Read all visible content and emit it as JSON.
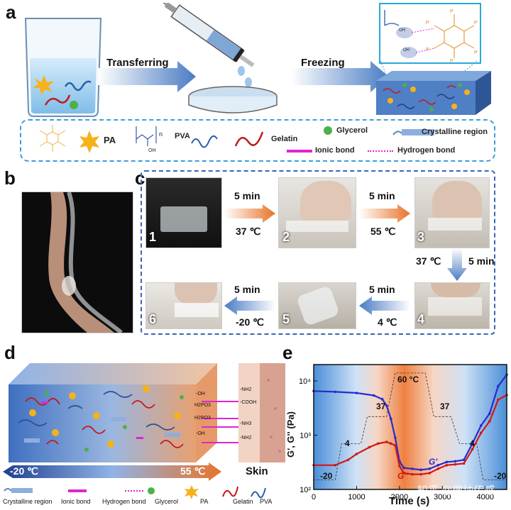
{
  "panels": {
    "a": "a",
    "b": "b",
    "c": "c",
    "d": "d",
    "e": "e"
  },
  "panel_a": {
    "step1": "Transferring",
    "step2": "Freezing",
    "legend": {
      "pa": "PA",
      "pva": "PVA",
      "pva_sub": "n",
      "pva_oh": "OH",
      "gelatin": "Gelatin",
      "glycerol": "Glycerol",
      "crystalline": "Crystalline region",
      "ionic": "Ionic bond",
      "hydrogen": "Hydrogen bond"
    },
    "zoom_labels": [
      "OH",
      "OH"
    ]
  },
  "panel_c": {
    "steps": [
      "1",
      "2",
      "3",
      "4",
      "5",
      "6"
    ],
    "t12": {
      "time": "5 min",
      "temp": "37 ℃"
    },
    "t23": {
      "time": "5 min",
      "temp": "55 ℃"
    },
    "t34": {
      "time": "5 min",
      "temp": "37 ℃"
    },
    "t45": {
      "time": "5 min",
      "temp": "4 ℃"
    },
    "t56": {
      "time": "5 min",
      "temp": "-20 ℃"
    }
  },
  "panel_d": {
    "temp_low": "-20 ℃",
    "temp_high": "55 ℃",
    "skin": "Skin",
    "left_groups": [
      "-OH",
      "H2PO3",
      "H2PO3",
      "-OH"
    ],
    "right_groups": [
      "-NH2",
      "-COOH",
      "-NH3",
      "-NH2"
    ],
    "legend": {
      "crystalline": "Crystalline region",
      "ionic": "Ionic bond",
      "hydrogen": "Hydrogen bond",
      "glycerol": "Glycerol",
      "pa": "PA",
      "gelatin": "Gelatin",
      "pva": "PVA"
    }
  },
  "chart_data": {
    "type": "line",
    "xlabel": "Time (s)",
    "ylabel": "G', G'' (Pa)",
    "xlim": [
      0,
      4500
    ],
    "ylim": [
      100,
      20000
    ],
    "yscale": "log",
    "x_ticks": [
      "0",
      "1000",
      "2000",
      "3000",
      "4000"
    ],
    "y_ticks": [
      "10²",
      "10³",
      "10⁴"
    ],
    "temperature_annotations": [
      "-20",
      "4",
      "37",
      "60 °C",
      "37",
      "4",
      "-20"
    ],
    "series": [
      {
        "name": "G'",
        "color": "#2a2ad0",
        "x": [
          0,
          500,
          1000,
          1400,
          1600,
          1700,
          1800,
          1900,
          2000,
          2100,
          2300,
          2500,
          2700,
          2900,
          3100,
          3300,
          3500,
          3700,
          3900,
          4100,
          4300,
          4500
        ],
        "y": [
          6500,
          6300,
          6000,
          5400,
          4600,
          3500,
          2000,
          900,
          330,
          250,
          240,
          230,
          240,
          280,
          320,
          330,
          350,
          700,
          1500,
          2500,
          8000,
          13000
        ]
      },
      {
        "name": "G''",
        "color": "#d01818",
        "x": [
          0,
          500,
          800,
          1000,
          1300,
          1500,
          1700,
          1800,
          1900,
          2000,
          2100,
          2300,
          2500,
          2700,
          2900,
          3100,
          3300,
          3500,
          3700,
          3900,
          4100,
          4300,
          4500
        ],
        "y": [
          280,
          280,
          350,
          450,
          600,
          700,
          750,
          700,
          650,
          270,
          200,
          190,
          190,
          200,
          240,
          280,
          290,
          300,
          550,
          1100,
          1800,
          4500,
          5500
        ]
      }
    ]
  },
  "watermark": "知乎 @微纳传感",
  "colors": {
    "accent_blue": "#3a66b3",
    "orange": "#e8732a",
    "red": "#d01818",
    "blue": "#2a2ad0"
  }
}
